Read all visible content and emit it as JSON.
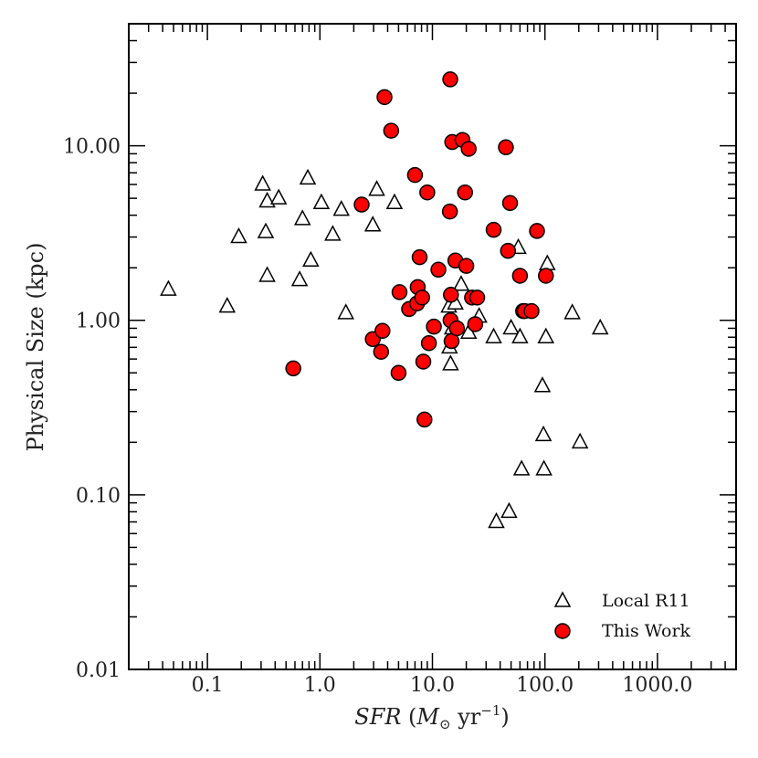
{
  "chart_data": {
    "type": "scatter",
    "title": "",
    "xlabel": "SFR (M⊙ yr⁻¹)",
    "xlabel_parts": {
      "var": "SFR",
      "open": " (",
      "msun": "M",
      "sun": "⊙",
      "unit": " yr",
      "exp": "−1",
      "close": ")"
    },
    "ylabel": "Physical Size (kpc)",
    "xscale": "log",
    "yscale": "log",
    "xlim": [
      0.02,
      5000
    ],
    "ylim": [
      0.01,
      50
    ],
    "xticks": [
      0.1,
      1,
      10,
      100,
      1000
    ],
    "xtick_labels": [
      "0.1",
      "1.0",
      "10.0",
      "100.0",
      "1000.0"
    ],
    "yticks": [
      0.01,
      0.1,
      1,
      10
    ],
    "ytick_labels": [
      "0.01",
      "0.10",
      "1.00",
      "10.00"
    ],
    "grid": false,
    "legend_position": "bottom-right",
    "series": [
      {
        "name": "Local R11",
        "marker": "open-triangle",
        "color": "#000000",
        "x": [
          0.045,
          0.15,
          0.19,
          0.31,
          0.33,
          0.34,
          0.34,
          0.43,
          0.66,
          0.7,
          0.78,
          0.83,
          1.03,
          1.3,
          1.55,
          1.7,
          2.95,
          3.2,
          4.6,
          14.0,
          14.2,
          14.5,
          15.0,
          16.0,
          18.0,
          21.0,
          26.0,
          35.0,
          37.0,
          48.0,
          50.0,
          58.0,
          60.0,
          62.0,
          95.0,
          97.0,
          98.0,
          102.0,
          105.0,
          175.0,
          205.0,
          310.0
        ],
        "y": [
          1.5,
          1.2,
          3.0,
          6.0,
          3.2,
          4.8,
          1.8,
          5.0,
          1.7,
          3.8,
          6.5,
          2.2,
          4.7,
          3.1,
          4.3,
          1.1,
          3.5,
          5.6,
          4.7,
          1.2,
          0.7,
          0.56,
          0.9,
          1.25,
          1.6,
          0.85,
          1.05,
          0.8,
          0.07,
          0.08,
          0.9,
          2.6,
          0.8,
          0.14,
          0.42,
          0.22,
          0.14,
          0.8,
          2.1,
          1.1,
          0.2,
          0.9
        ]
      },
      {
        "name": "This Work",
        "marker": "filled-circle",
        "color": "#ff0000",
        "x": [
          0.58,
          2.35,
          2.95,
          3.5,
          3.6,
          3.75,
          4.3,
          5.0,
          5.1,
          6.2,
          7.0,
          7.3,
          7.4,
          7.7,
          8.1,
          8.3,
          8.5,
          9.0,
          9.3,
          10.3,
          11.3,
          14.3,
          14.4,
          14.5,
          14.6,
          14.8,
          15.0,
          16.0,
          16.5,
          18.5,
          19.5,
          20.0,
          21.0,
          22.5,
          24.0,
          25.0,
          35.0,
          45.0,
          47.0,
          49.0,
          60.0,
          64.0,
          66.0,
          76.0,
          85.0,
          102.0
        ],
        "y": [
          0.53,
          4.6,
          0.78,
          0.66,
          0.87,
          19.0,
          12.2,
          0.5,
          1.45,
          1.16,
          6.8,
          1.25,
          1.55,
          2.3,
          1.35,
          0.58,
          0.27,
          5.4,
          0.74,
          0.92,
          1.95,
          4.2,
          24.0,
          1.0,
          1.4,
          0.76,
          10.5,
          2.2,
          0.9,
          10.8,
          5.4,
          2.05,
          9.6,
          1.35,
          0.95,
          1.35,
          3.3,
          9.8,
          2.5,
          4.7,
          1.8,
          1.13,
          1.13,
          1.13,
          3.25,
          1.8
        ]
      }
    ]
  }
}
